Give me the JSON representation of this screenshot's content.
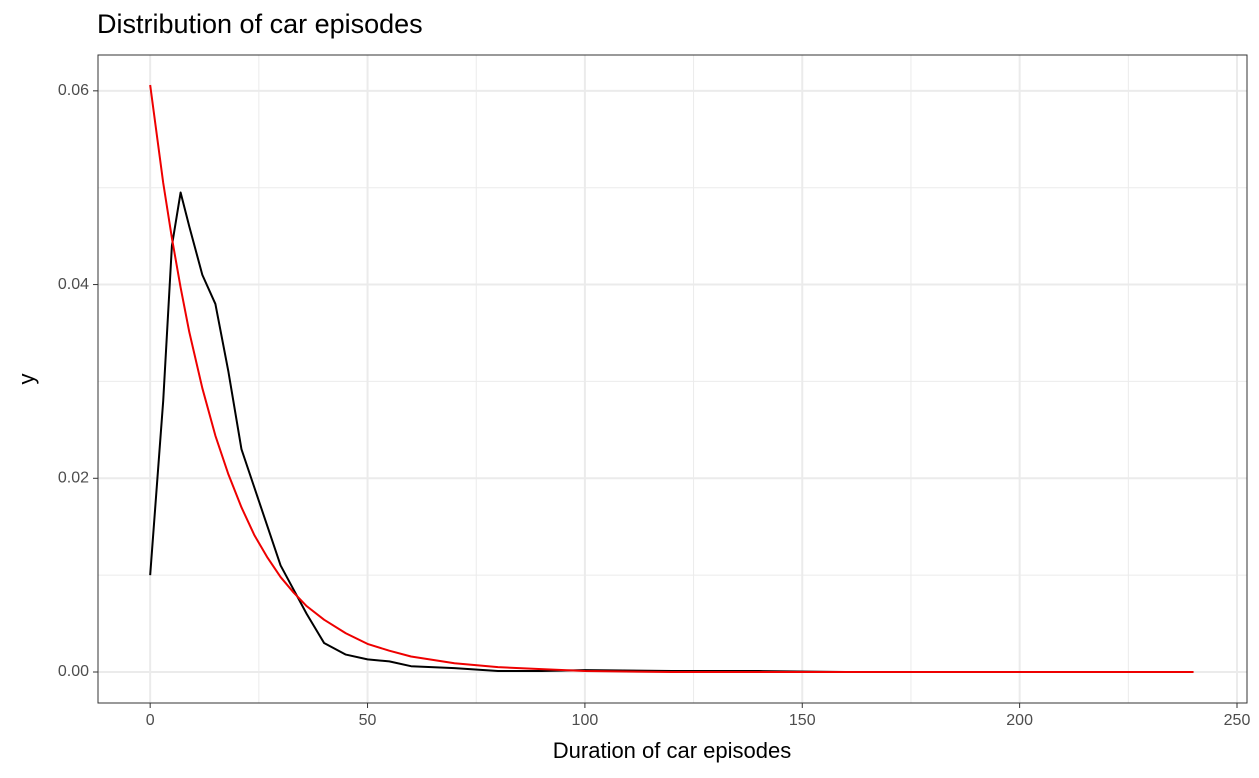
{
  "chart_data": {
    "type": "line",
    "title": "Distribution of car episodes",
    "x_label": "Duration of car episodes",
    "y_label": "y",
    "x": [
      0,
      3,
      5,
      7,
      9,
      12,
      15,
      18,
      21,
      24,
      27,
      30,
      33,
      36,
      40,
      45,
      50,
      55,
      60,
      70,
      80,
      90,
      100,
      120,
      140,
      160,
      180,
      200,
      220,
      240
    ],
    "series": [
      {
        "color": "#000000",
        "values": [
          0.01,
          0.028,
          0.044,
          0.0495,
          0.046,
          0.041,
          0.038,
          0.031,
          0.023,
          0.019,
          0.015,
          0.011,
          0.0085,
          0.006,
          0.003,
          0.0018,
          0.0013,
          0.0011,
          0.0006,
          0.0004,
          0.0001,
          0.0001,
          0.0002,
          0.0001,
          0.0001,
          0,
          0,
          0,
          0,
          0
        ]
      },
      {
        "color": "#ee0000",
        "values": [
          0.0606,
          0.0505,
          0.0448,
          0.0397,
          0.0351,
          0.0293,
          0.0244,
          0.0204,
          0.017,
          0.0141,
          0.0118,
          0.0098,
          0.0082,
          0.0068,
          0.0054,
          0.004,
          0.0029,
          0.0022,
          0.0016,
          0.0009,
          0.0005,
          0.0003,
          0.0001,
          0,
          0,
          0,
          0,
          0,
          0,
          0
        ]
      }
    ],
    "xlim": [
      -12,
      252.3
    ],
    "ylim": [
      -0.0032,
      0.0637
    ],
    "xticks": [
      0,
      50,
      100,
      150,
      200,
      250
    ],
    "yticks": [
      {
        "value": 0,
        "label": "0.00"
      },
      0.02,
      0.04,
      0.06
    ],
    "x_minor_grid": [
      25,
      75,
      125,
      175,
      225
    ],
    "y_minor_grid": [
      0.01,
      0.03,
      0.05
    ],
    "grid": true
  }
}
